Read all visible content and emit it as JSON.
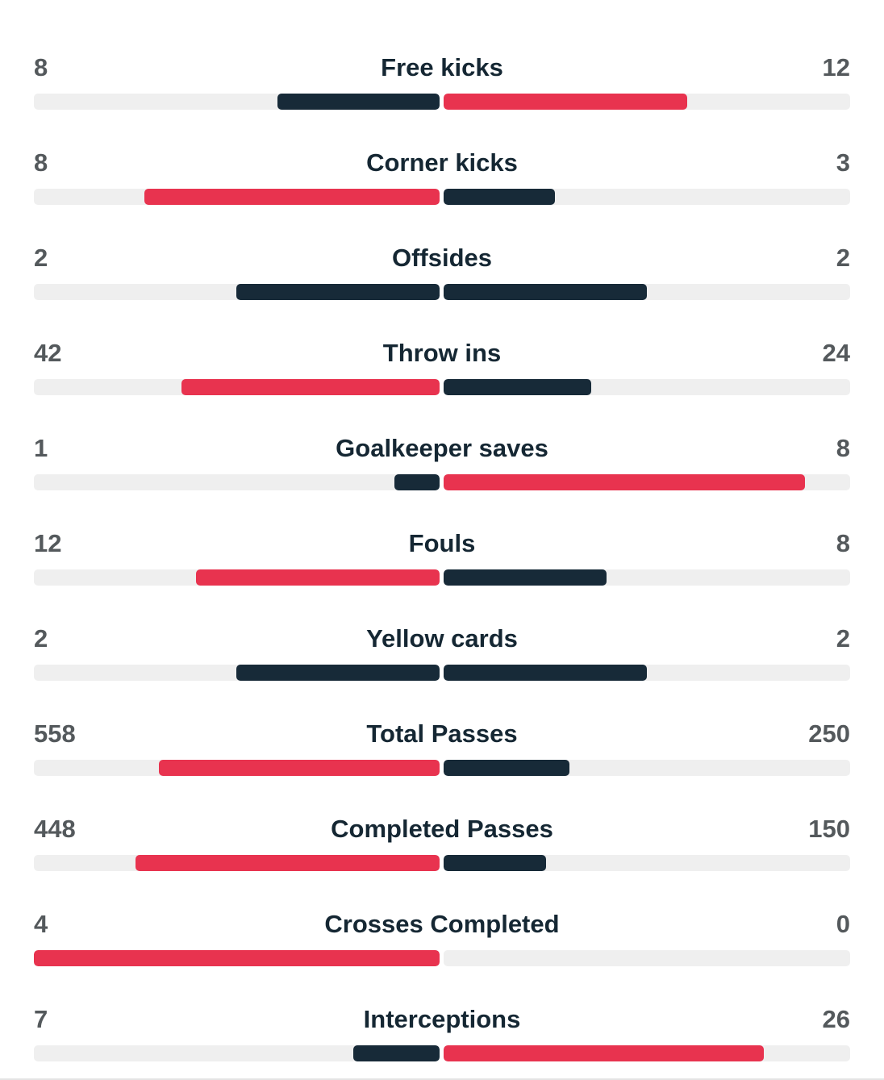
{
  "colors": {
    "leader": "#e8334f",
    "trailer": "#172a38",
    "track": "#efefef",
    "value_text": "#54595c",
    "label_text": "#152733"
  },
  "stats": [
    {
      "label": "Free kicks",
      "home": "8",
      "away": "12",
      "home_share": 0.4,
      "away_share": 0.6
    },
    {
      "label": "Corner kicks",
      "home": "8",
      "away": "3",
      "home_share": 0.727,
      "away_share": 0.273
    },
    {
      "label": "Offsides",
      "home": "2",
      "away": "2",
      "home_share": 0.5,
      "away_share": 0.5
    },
    {
      "label": "Throw ins",
      "home": "42",
      "away": "24",
      "home_share": 0.636,
      "away_share": 0.364
    },
    {
      "label": "Goalkeeper saves",
      "home": "1",
      "away": "8",
      "home_share": 0.111,
      "away_share": 0.889
    },
    {
      "label": "Fouls",
      "home": "12",
      "away": "8",
      "home_share": 0.6,
      "away_share": 0.4
    },
    {
      "label": "Yellow cards",
      "home": "2",
      "away": "2",
      "home_share": 0.5,
      "away_share": 0.5
    },
    {
      "label": "Total Passes",
      "home": "558",
      "away": "250",
      "home_share": 0.691,
      "away_share": 0.309
    },
    {
      "label": "Completed Passes",
      "home": "448",
      "away": "150",
      "home_share": 0.749,
      "away_share": 0.251
    },
    {
      "label": "Crosses Completed",
      "home": "4",
      "away": "0",
      "home_share": 1.0,
      "away_share": 0.0
    },
    {
      "label": "Interceptions",
      "home": "7",
      "away": "26",
      "home_share": 0.212,
      "away_share": 0.788
    }
  ]
}
